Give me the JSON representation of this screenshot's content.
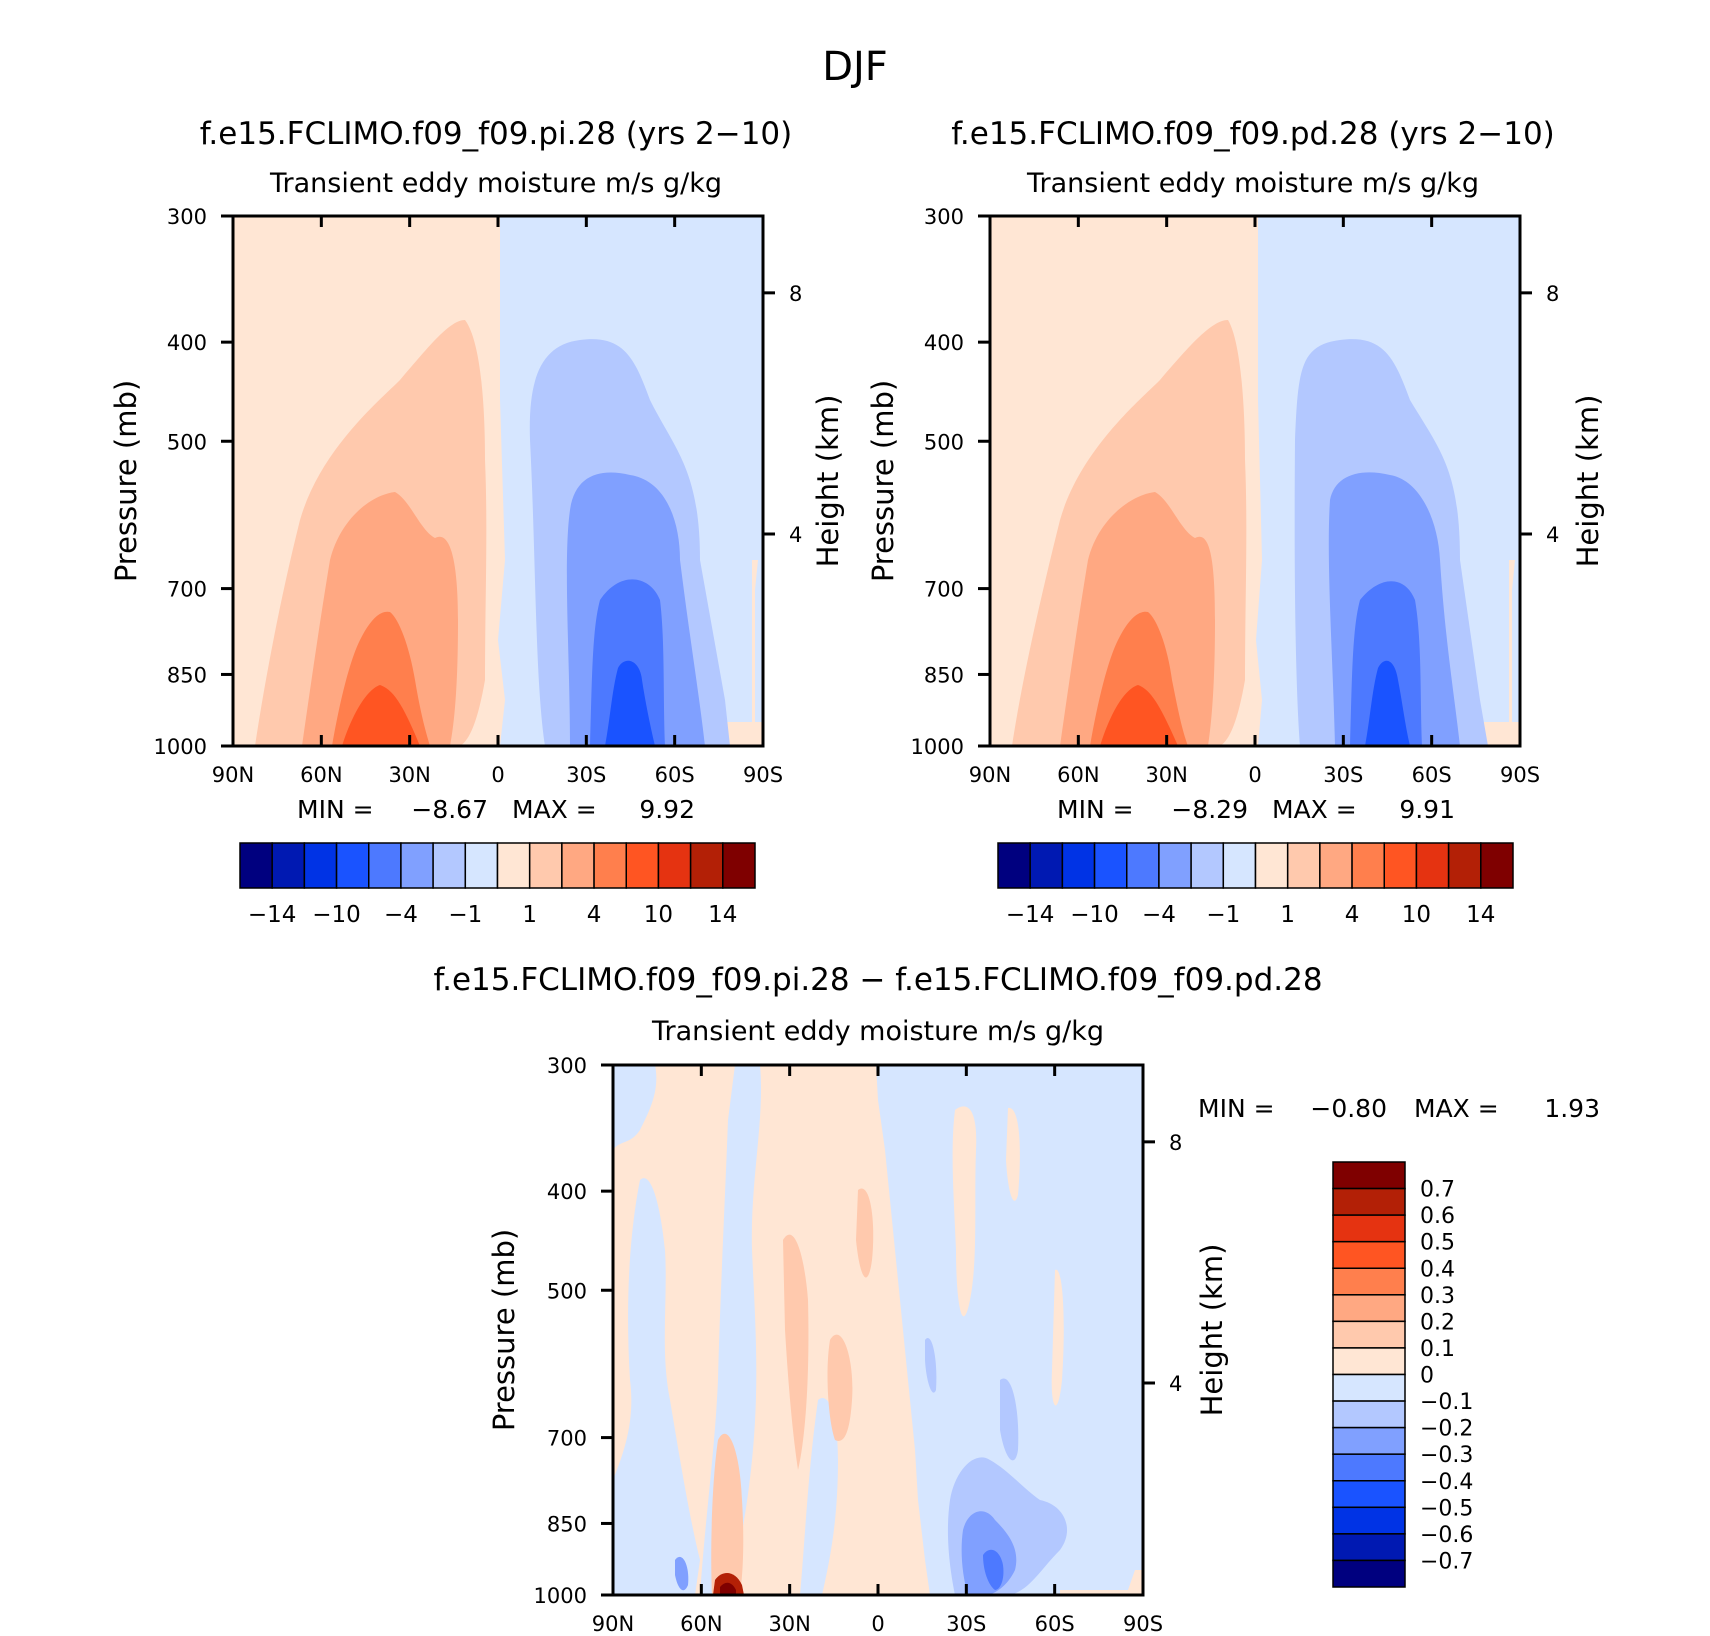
{
  "figure": {
    "title": "DJF"
  },
  "chart_data": [
    {
      "type": "heatmap",
      "title": "f.e15.FCLIMO.f09_f09.pi.28 (yrs 2−10)",
      "subtitle": "Transient eddy moisture m/s g/kg",
      "ylabel": "Pressure (mb)",
      "y2label": "Height (km)",
      "x_ticks": [
        "90N",
        "60N",
        "30N",
        "0",
        "30S",
        "60S",
        "90S"
      ],
      "y_ticks": [
        "300",
        "400",
        "500",
        "700",
        "850",
        "1000"
      ],
      "y2_ticks": [
        "8",
        "4"
      ],
      "xlim": [
        90,
        -90
      ],
      "ylim": [
        1000,
        300
      ],
      "stats": {
        "min_label": "MIN =",
        "min": "−8.67",
        "max_label": "MAX =",
        "max": "9.92"
      },
      "colorbar": {
        "orientation": "horizontal",
        "colors": [
          "#00007f",
          "#0019b2",
          "#0033e5",
          "#1a53ff",
          "#4d79ff",
          "#80a0ff",
          "#b3c8ff",
          "#d6e6ff",
          "#ffe6d4",
          "#ffc9ad",
          "#ffa882",
          "#ff7f4d",
          "#ff5522",
          "#e53311",
          "#b32006",
          "#7f0000"
        ],
        "labels": [
          "−14",
          "−10",
          "−4",
          "−1",
          "1",
          "4",
          "10",
          "14"
        ]
      },
      "levels": [
        {
          "value": -1,
          "color": "#d6e6ff"
        },
        {
          "value": -2,
          "color": "#b3c8ff"
        },
        {
          "value": -4,
          "color": "#80a0ff"
        },
        {
          "value": -6,
          "color": "#4d79ff"
        },
        {
          "value": -8,
          "color": "#1a53ff"
        },
        {
          "value": 1,
          "color": "#ffc9ad"
        },
        {
          "value": 2,
          "color": "#ffa882"
        },
        {
          "value": 4,
          "color": "#ff7f4d"
        },
        {
          "value": 8,
          "color": "#ff5522"
        }
      ]
    },
    {
      "type": "heatmap",
      "title": "f.e15.FCLIMO.f09_f09.pd.28 (yrs 2−10)",
      "subtitle": "Transient eddy moisture m/s g/kg",
      "ylabel": "Pressure (mb)",
      "y2label": "Height (km)",
      "x_ticks": [
        "90N",
        "60N",
        "30N",
        "0",
        "30S",
        "60S",
        "90S"
      ],
      "y_ticks": [
        "300",
        "400",
        "500",
        "700",
        "850",
        "1000"
      ],
      "y2_ticks": [
        "8",
        "4"
      ],
      "xlim": [
        90,
        -90
      ],
      "ylim": [
        1000,
        300
      ],
      "stats": {
        "min_label": "MIN =",
        "min": "−8.29",
        "max_label": "MAX =",
        "max": "9.91"
      },
      "colorbar": {
        "orientation": "horizontal",
        "colors": [
          "#00007f",
          "#0019b2",
          "#0033e5",
          "#1a53ff",
          "#4d79ff",
          "#80a0ff",
          "#b3c8ff",
          "#d6e6ff",
          "#ffe6d4",
          "#ffc9ad",
          "#ffa882",
          "#ff7f4d",
          "#ff5522",
          "#e53311",
          "#b32006",
          "#7f0000"
        ],
        "labels": [
          "−14",
          "−10",
          "−4",
          "−1",
          "1",
          "4",
          "10",
          "14"
        ]
      },
      "levels": [
        {
          "value": -1,
          "color": "#d6e6ff"
        },
        {
          "value": -2,
          "color": "#b3c8ff"
        },
        {
          "value": -4,
          "color": "#80a0ff"
        },
        {
          "value": -6,
          "color": "#4d79ff"
        },
        {
          "value": -8,
          "color": "#1a53ff"
        },
        {
          "value": 1,
          "color": "#ffc9ad"
        },
        {
          "value": 2,
          "color": "#ffa882"
        },
        {
          "value": 4,
          "color": "#ff7f4d"
        },
        {
          "value": 8,
          "color": "#ff5522"
        }
      ]
    },
    {
      "type": "heatmap",
      "title": "f.e15.FCLIMO.f09_f09.pi.28 − f.e15.FCLIMO.f09_f09.pd.28",
      "subtitle": "Transient eddy moisture m/s g/kg",
      "ylabel": "Pressure (mb)",
      "y2label": "Height (km)",
      "x_ticks": [
        "90N",
        "60N",
        "30N",
        "0",
        "30S",
        "60S",
        "90S"
      ],
      "y_ticks": [
        "300",
        "400",
        "500",
        "700",
        "850",
        "1000"
      ],
      "y2_ticks": [
        "8",
        "4"
      ],
      "xlim": [
        90,
        -90
      ],
      "ylim": [
        1000,
        300
      ],
      "stats": {
        "min_label": "MIN =",
        "min": "−0.80",
        "max_label": "MAX =",
        "max": "1.93"
      },
      "colorbar": {
        "orientation": "vertical",
        "colors": [
          "#00007f",
          "#0019b2",
          "#0033e5",
          "#1a53ff",
          "#4d79ff",
          "#80a0ff",
          "#b3c8ff",
          "#d6e6ff",
          "#ffe6d4",
          "#ffc9ad",
          "#ffa882",
          "#ff7f4d",
          "#ff5522",
          "#e53311",
          "#b32006",
          "#7f0000"
        ],
        "labels": [
          "−0.7",
          "−0.6",
          "−0.5",
          "−0.4",
          "−0.3",
          "−0.2",
          "−0.1",
          "0",
          "0.1",
          "0.2",
          "0.3",
          "0.4",
          "0.5",
          "0.6",
          "0.7"
        ]
      }
    }
  ]
}
